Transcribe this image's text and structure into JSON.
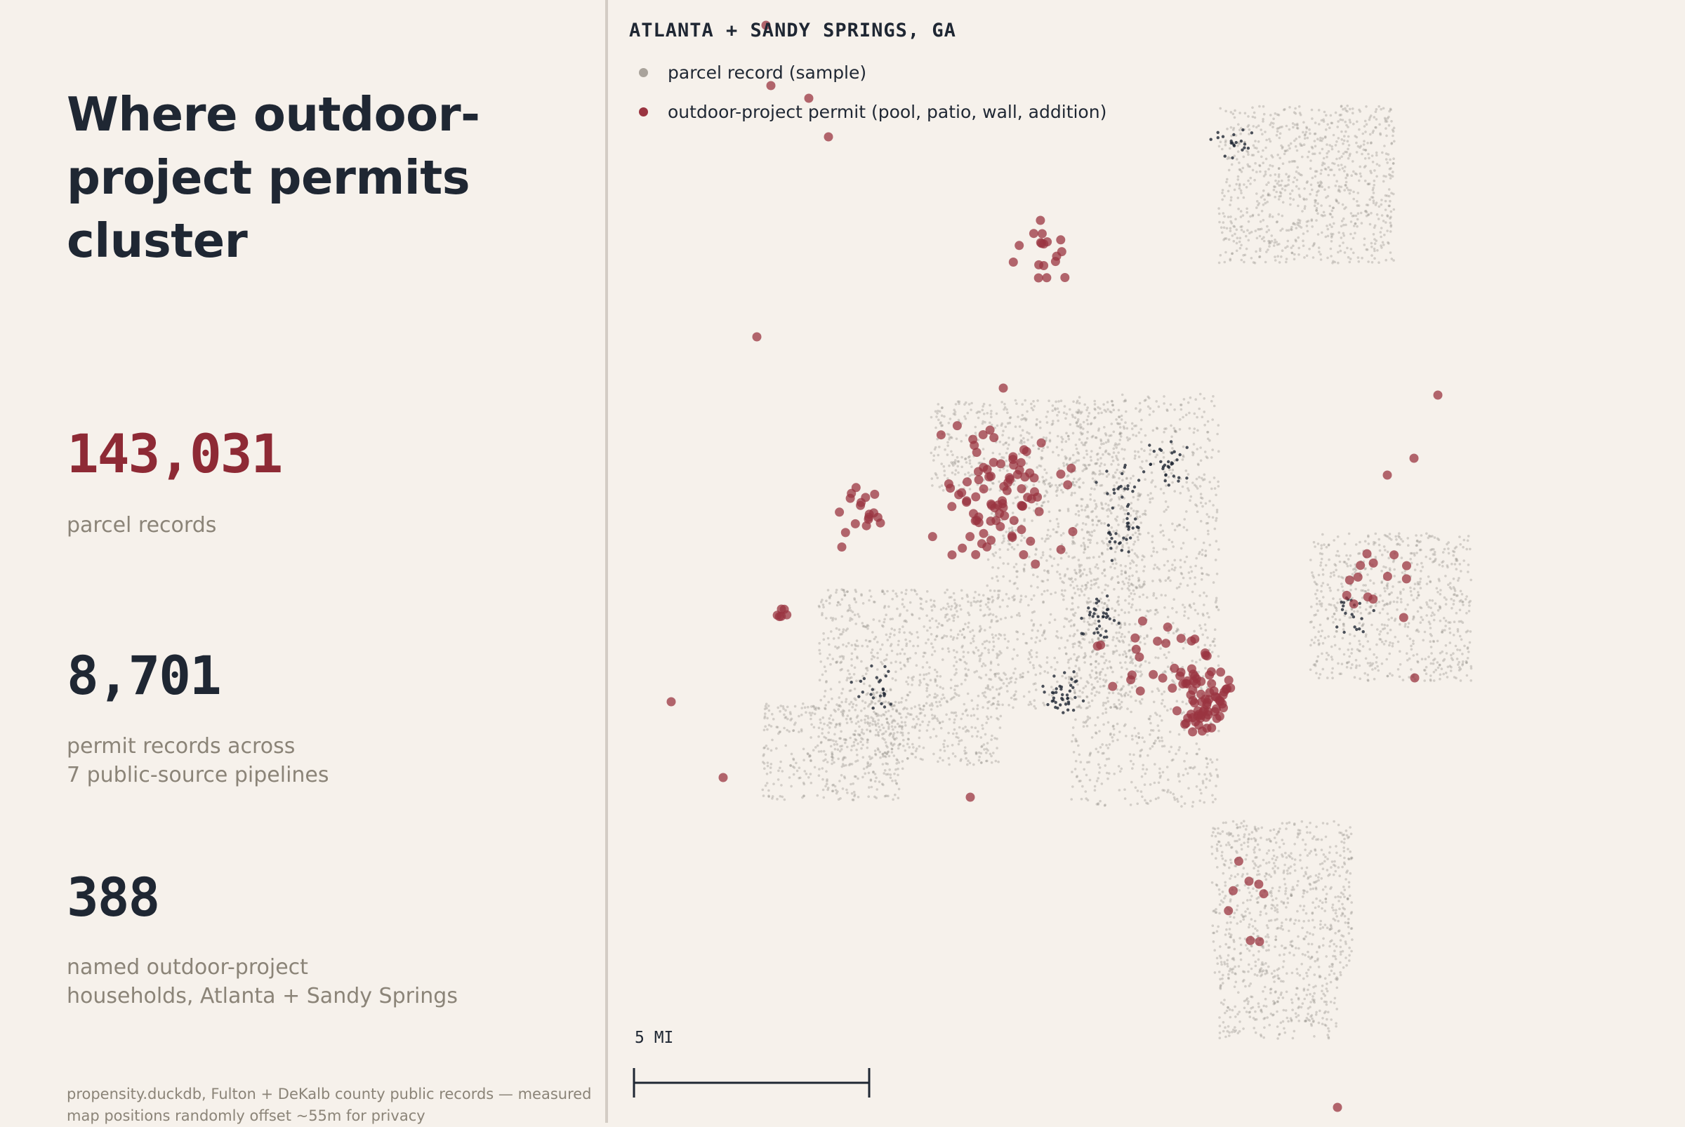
{
  "title": "Where outdoor-project permits cluster",
  "stats": [
    {
      "value": "143,031",
      "caption": "parcel records"
    },
    {
      "value": "8,701",
      "caption": "permit records across\n7 public-source pipelines"
    },
    {
      "value": "388",
      "caption": "named outdoor-project\nhouseholds, Atlanta + Sandy Springs"
    }
  ],
  "footnote": "propensity.duckdb, Fulton + DeKalb county public records — measured\nmap positions randomly offset ~55m for privacy",
  "map": {
    "title": "ATLANTA + SANDY SPRINGS, GA",
    "legend": [
      {
        "label": "parcel record (sample)",
        "color": "#a9a39b"
      },
      {
        "label": "outdoor-project permit (pool, patio, wall, addition)",
        "color": "#9a3440"
      }
    ],
    "scale_label": "5 MI"
  },
  "colors": {
    "accent": "#8e2a35",
    "permit": "#9a3440",
    "parcel": "#8a8580",
    "dark_parcel": "#1f2733",
    "background": "#f6f1eb"
  }
}
